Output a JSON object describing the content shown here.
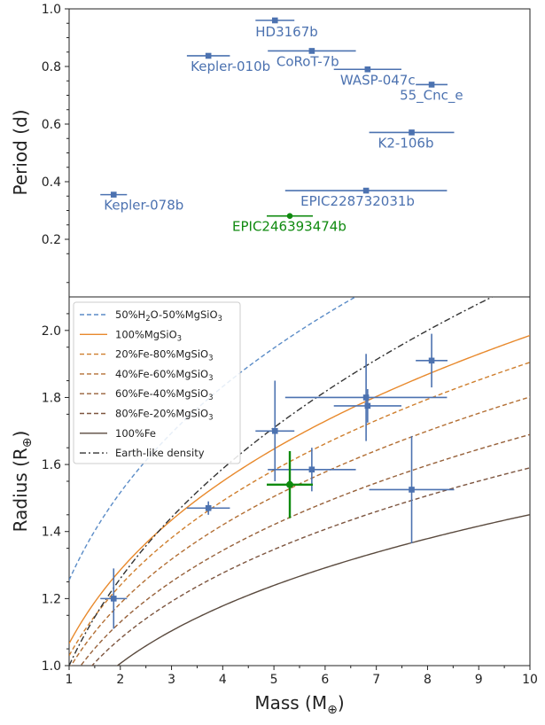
{
  "chart_data": [
    {
      "type": "scatter",
      "panel": "top",
      "title": "",
      "ylabel": "Period (d)",
      "xlim": [
        1,
        10
      ],
      "ylim": [
        0,
        1.0
      ],
      "yticks": [
        "0.2",
        "0.4",
        "0.6",
        "0.8",
        "1.0"
      ],
      "grid": false,
      "points": [
        {
          "name": "HD3167b",
          "mass": 5.02,
          "period": 0.96,
          "mass_err": 0.38,
          "color": "#4c72b0"
        },
        {
          "name": "Kepler-010b",
          "mass": 3.72,
          "period": 0.837,
          "mass_err": 0.42,
          "color": "#4c72b0"
        },
        {
          "name": "CoRoT-7b",
          "mass": 5.74,
          "period": 0.854,
          "mass_err": 0.86,
          "color": "#4c72b0"
        },
        {
          "name": "WASP-047c",
          "mass": 6.83,
          "period": 0.79,
          "mass_err": 0.66,
          "color": "#4c72b0"
        },
        {
          "name": "55_Cnc_e",
          "mass": 8.08,
          "period": 0.737,
          "mass_err": 0.31,
          "color": "#4c72b0"
        },
        {
          "name": "K2-106b",
          "mass": 7.69,
          "period": 0.571,
          "mass_err": 0.83,
          "color": "#4c72b0"
        },
        {
          "name": "Kepler-078b",
          "mass": 1.87,
          "period": 0.355,
          "mass_err": 0.26,
          "color": "#4c72b0"
        },
        {
          "name": "EPIC228732031b",
          "mass": 6.8,
          "period": 0.369,
          "mass_err": 1.58,
          "color": "#4c72b0"
        },
        {
          "name": "EPIC246393474b",
          "mass": 5.31,
          "period": 0.281,
          "mass_err": 0.45,
          "color": "#0f8a0f"
        }
      ]
    },
    {
      "type": "line",
      "panel": "bottom",
      "title": "",
      "xlabel": "Mass (M⊕)",
      "ylabel": "Radius (R⊕)",
      "xlim": [
        1,
        10
      ],
      "ylim": [
        1.0,
        2.1
      ],
      "xticks": [
        "1",
        "2",
        "3",
        "4",
        "5",
        "6",
        "7",
        "8",
        "9",
        "10"
      ],
      "yticks": [
        "1.0",
        "1.2",
        "1.4",
        "1.6",
        "1.8",
        "2.0"
      ],
      "grid": false,
      "legend_position": "top-left",
      "series": [
        {
          "name": "50%H2O-50%MgSiO3",
          "label_main": "50%H",
          "label_sub1": "2",
          "label_mid": "O-50%MgSiO",
          "label_sub2": "3",
          "color": "#5b8cc7",
          "dash": "5,3",
          "radius_at_1": 1.255,
          "exponent": 0.273
        },
        {
          "name": "100%MgSiO3",
          "label_main": "100%MgSiO",
          "label_sub2": "3",
          "color": "#e8892c",
          "dash": "",
          "radius_at_1": 1.066,
          "exponent": 0.27
        },
        {
          "name": "20%Fe-80%MgSiO3",
          "label_main": "20%Fe-80%MgSiO",
          "label_sub2": "3",
          "color": "#cf7f2e",
          "dash": "5,3",
          "radius_at_1": 1.03,
          "exponent": 0.267
        },
        {
          "name": "40%Fe-60%MgSiO3",
          "label_main": "40%Fe-60%MgSiO",
          "label_sub2": "3",
          "color": "#b36f34",
          "dash": "5,3",
          "radius_at_1": 0.99,
          "exponent": 0.26
        },
        {
          "name": "60%Fe-40%MgSiO3",
          "label_main": "60%Fe-40%MgSiO",
          "label_sub2": "3",
          "color": "#97613a",
          "dash": "5,3",
          "radius_at_1": 0.95,
          "exponent": 0.25
        },
        {
          "name": "80%Fe-20%MgSiO3",
          "label_main": "80%Fe-20%MgSiO",
          "label_sub2": "3",
          "color": "#7d553f",
          "dash": "5,3",
          "radius_at_1": 0.915,
          "exponent": 0.24
        },
        {
          "name": "100%Fe",
          "label_main": "100%Fe",
          "color": "#5a4a3e",
          "dash": "",
          "radius_at_1": 0.86,
          "exponent": 0.227
        },
        {
          "name": "Earth-like density",
          "label_main": "Earth-like density",
          "color": "#333333",
          "dash": "7,3,2,3",
          "radius_at_1": 1.0,
          "exponent": 0.3333
        }
      ],
      "points": [
        {
          "mass": 1.87,
          "radius": 1.2,
          "mass_err": 0.26,
          "radius_err": 0.09,
          "color": "#4c72b0"
        },
        {
          "mass": 3.72,
          "radius": 1.47,
          "mass_err": 0.42,
          "radius_err": 0.02,
          "color": "#4c72b0"
        },
        {
          "mass": 5.02,
          "radius": 1.7,
          "mass_err": 0.38,
          "radius_err": 0.15,
          "color": "#4c72b0"
        },
        {
          "mass": 5.74,
          "radius": 1.585,
          "mass_err": 0.86,
          "radius_err": 0.065,
          "color": "#4c72b0"
        },
        {
          "mass": 6.8,
          "radius": 1.8,
          "mass_err": 1.58,
          "radius_err": 0.13,
          "color": "#4c72b0"
        },
        {
          "mass": 6.83,
          "radius": 1.775,
          "mass_err": 0.66,
          "radius_err": 0.05,
          "color": "#4c72b0"
        },
        {
          "mass": 8.08,
          "radius": 1.91,
          "mass_err": 0.31,
          "radius_err": 0.08,
          "color": "#4c72b0"
        },
        {
          "mass": 7.69,
          "radius": 1.525,
          "mass_err": 0.83,
          "radius_err": 0.16,
          "color": "#4c72b0"
        },
        {
          "mass": 5.31,
          "radius": 1.54,
          "mass_err": 0.45,
          "radius_err": 0.1,
          "color": "#0f8a0f"
        }
      ]
    }
  ]
}
